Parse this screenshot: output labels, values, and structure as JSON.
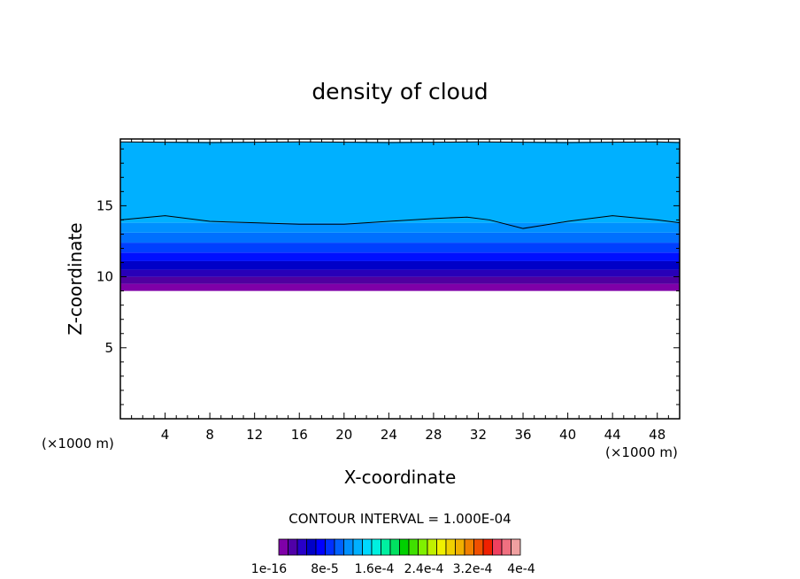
{
  "chart_data": {
    "type": "heatmap",
    "title": "density of cloud",
    "xlabel": "X-coordinate",
    "ylabel": "Z-coordinate",
    "x_unit_left": "(×1000 m)",
    "x_unit_right": "(×1000 m)",
    "xlim": [
      0,
      50
    ],
    "ylim": [
      0,
      19.7
    ],
    "x_ticks": [
      4,
      8,
      12,
      16,
      20,
      24,
      28,
      32,
      36,
      40,
      44,
      48
    ],
    "y_ticks": [
      5,
      10,
      15
    ],
    "contour_interval_label": "CONTOUR INTERVAL = 1.000E-04",
    "colorbar_labels": [
      "1e-16",
      "8e-5",
      "1.6e-4",
      "2.4e-4",
      "3.2e-4",
      "4e-4"
    ],
    "colorbar_colors": [
      "#7f00a8",
      "#5000a8",
      "#2800c8",
      "#0000c8",
      "#0000ff",
      "#0030ff",
      "#0060ff",
      "#0090ff",
      "#00b0ff",
      "#00d8ff",
      "#00f0e0",
      "#00f0a0",
      "#00e060",
      "#00d000",
      "#40e000",
      "#80f000",
      "#c0f000",
      "#f0f000",
      "#f0d000",
      "#f0b000",
      "#f08000",
      "#f05000",
      "#f02000",
      "#f04060",
      "#f07080",
      "#f0a0a0"
    ],
    "cloud_layers": [
      {
        "z_bottom": 9.0,
        "z_top": 9.5,
        "color": "#7f00a8"
      },
      {
        "z_bottom": 9.5,
        "z_top": 10.0,
        "color": "#5000a0"
      },
      {
        "z_bottom": 10.0,
        "z_top": 10.5,
        "color": "#2800b8"
      },
      {
        "z_bottom": 10.5,
        "z_top": 11.1,
        "color": "#0000c8"
      },
      {
        "z_bottom": 11.1,
        "z_top": 11.7,
        "color": "#0010ff"
      },
      {
        "z_bottom": 11.7,
        "z_top": 12.4,
        "color": "#0040ff"
      },
      {
        "z_bottom": 12.4,
        "z_top": 13.1,
        "color": "#0070ff"
      },
      {
        "z_bottom": 13.1,
        "z_top": 13.8,
        "color": "#0090ff"
      },
      {
        "z_bottom": 13.8,
        "z_top": 19.5,
        "color": "#00b0ff"
      }
    ],
    "contour_lines": [
      {
        "x": [
          0,
          4,
          8,
          12,
          16,
          20,
          24,
          28,
          31,
          33,
          36,
          40,
          44,
          48,
          50
        ],
        "z": [
          14.0,
          14.3,
          13.9,
          13.8,
          13.7,
          13.7,
          13.9,
          14.1,
          14.2,
          14.0,
          13.4,
          13.9,
          14.3,
          14.0,
          13.8
        ]
      },
      {
        "x": [
          0,
          8,
          16,
          24,
          32,
          40,
          48,
          50
        ],
        "z": [
          19.5,
          19.45,
          19.5,
          19.45,
          19.5,
          19.45,
          19.5,
          19.45
        ]
      }
    ]
  }
}
